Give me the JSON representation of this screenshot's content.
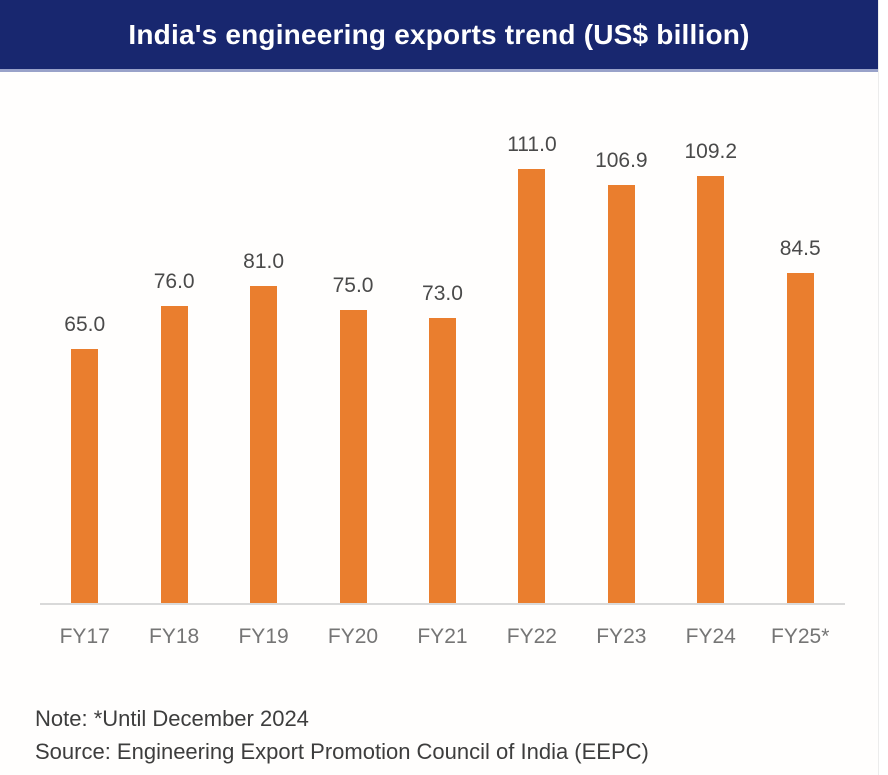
{
  "title": "India's engineering exports trend (US$ billion)",
  "notes": {
    "note": "Note: *Until December 2024",
    "source": "Source: Engineering Export Promotion Council of India (EEPC)"
  },
  "colors": {
    "banner_bg": "#18276f",
    "banner_separator": "#99a2c9",
    "title_text": "#ffffff",
    "bar": "#ea7e2e",
    "data_label": "#4a4a4a",
    "axis_line": "#d9d9d9",
    "x_label": "#757575",
    "note_text": "#3d3d3d",
    "background": "#fffefd"
  },
  "chart_data": {
    "type": "bar",
    "categories": [
      "FY17",
      "FY18",
      "FY19",
      "FY20",
      "FY21",
      "FY22",
      "FY23",
      "FY24",
      "FY25*"
    ],
    "values": [
      65.0,
      76.0,
      81.0,
      75.0,
      73.0,
      111.0,
      106.9,
      109.2,
      84.5
    ],
    "data_labels": [
      "65.0",
      "76.0",
      "81.0",
      "75.0",
      "73.0",
      "111.0",
      "106.9",
      "109.2",
      "84.5"
    ],
    "title": "India's engineering exports trend (US$ billion)",
    "xlabel": "",
    "ylabel": "",
    "ylim": [
      0,
      120
    ],
    "grid": false,
    "legend_position": "none",
    "bar_color": "#ea7e2e"
  }
}
